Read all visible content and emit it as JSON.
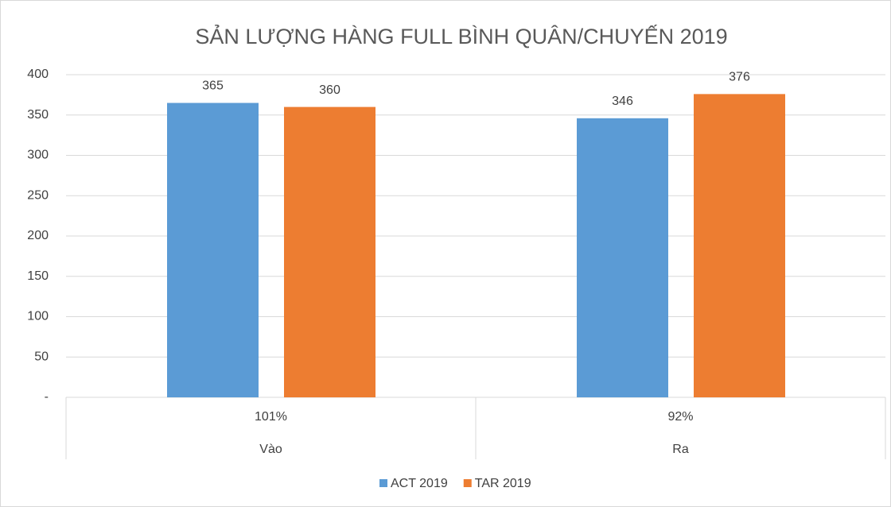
{
  "chart_data": {
    "type": "bar",
    "title": "SẢN LƯỢNG HÀNG FULL BÌNH QUÂN/CHUYẾN  2019",
    "categories": [
      "Vào",
      "Ra"
    ],
    "category_sublabels": [
      "101%",
      "92%"
    ],
    "series": [
      {
        "name": "ACT 2019",
        "color": "#5b9bd5",
        "values": [
          365,
          346
        ]
      },
      {
        "name": "TAR 2019",
        "color": "#ed7d31",
        "values": [
          360,
          376
        ]
      }
    ],
    "ylim": [
      0,
      400
    ],
    "yticks": [
      {
        "value": 0,
        "label": "-"
      },
      50,
      100,
      150,
      200,
      250,
      300,
      350,
      400
    ],
    "grid": true,
    "legend": "bottom"
  }
}
